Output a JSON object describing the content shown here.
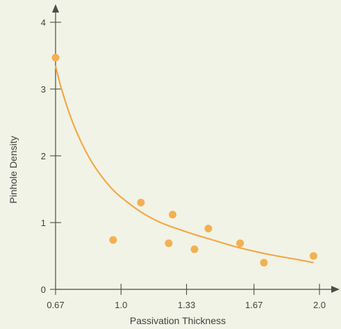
{
  "chart_data": {
    "type": "scatter",
    "title": "",
    "xlabel": "Passivation Thickness",
    "ylabel": "Pinhole Density",
    "xlim": [
      0.67,
      2.0
    ],
    "ylim": [
      0,
      4
    ],
    "x_ticks": [
      0.67,
      1.0,
      1.33,
      1.67,
      2.0
    ],
    "x_tick_labels": [
      "0.67",
      "1.0",
      "1.33",
      "1.67",
      "2.0"
    ],
    "y_ticks": [
      0,
      1,
      2,
      3,
      4
    ],
    "y_tick_labels": [
      "0",
      "1",
      "2",
      "3",
      "4"
    ],
    "grid": false,
    "legend": "none",
    "series": [
      {
        "type": "scatter",
        "points": [
          {
            "x": 0.67,
            "y": 3.47
          },
          {
            "x": 0.96,
            "y": 0.74
          },
          {
            "x": 1.1,
            "y": 1.3
          },
          {
            "x": 1.24,
            "y": 0.69
          },
          {
            "x": 1.26,
            "y": 1.12
          },
          {
            "x": 1.37,
            "y": 0.6
          },
          {
            "x": 1.44,
            "y": 0.91
          },
          {
            "x": 1.6,
            "y": 0.69
          },
          {
            "x": 1.72,
            "y": 0.4
          },
          {
            "x": 1.97,
            "y": 0.5
          }
        ],
        "color": "#f3b051"
      },
      {
        "type": "line",
        "points": [
          {
            "x": 0.67,
            "y": 3.35
          },
          {
            "x": 0.7,
            "y": 3.0
          },
          {
            "x": 0.75,
            "y": 2.55
          },
          {
            "x": 0.8,
            "y": 2.2
          },
          {
            "x": 0.85,
            "y": 1.92
          },
          {
            "x": 0.9,
            "y": 1.7
          },
          {
            "x": 0.95,
            "y": 1.52
          },
          {
            "x": 1.0,
            "y": 1.38
          },
          {
            "x": 1.1,
            "y": 1.16
          },
          {
            "x": 1.2,
            "y": 1.0
          },
          {
            "x": 1.33,
            "y": 0.86
          },
          {
            "x": 1.45,
            "y": 0.75
          },
          {
            "x": 1.6,
            "y": 0.62
          },
          {
            "x": 1.75,
            "y": 0.52
          },
          {
            "x": 1.9,
            "y": 0.44
          },
          {
            "x": 1.97,
            "y": 0.4
          }
        ],
        "color": "#f2a94a"
      }
    ]
  }
}
